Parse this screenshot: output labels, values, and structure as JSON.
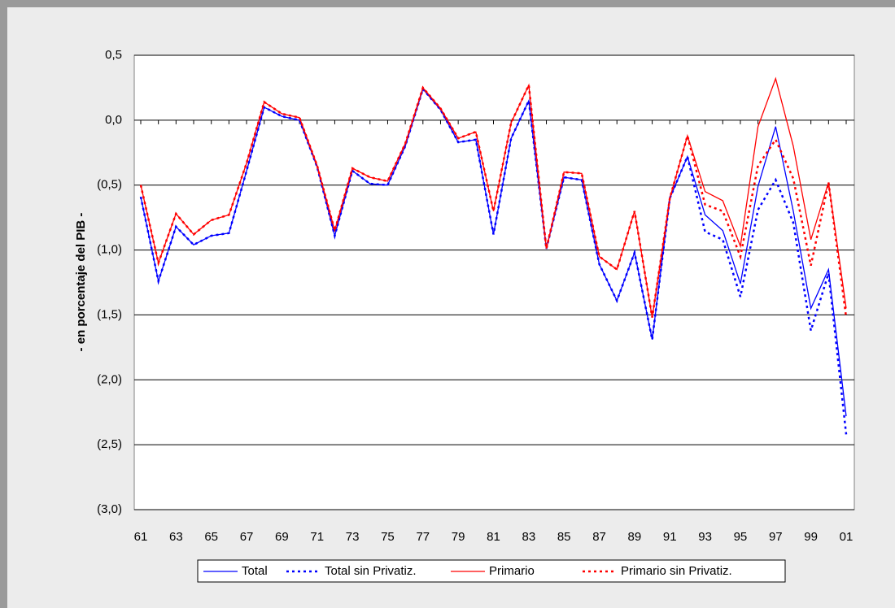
{
  "chart_data": {
    "type": "line",
    "y_label": "- en porcentaje del PIB -",
    "categories": [
      "61",
      null,
      "63",
      null,
      "65",
      null,
      "67",
      null,
      "69",
      null,
      "71",
      null,
      "73",
      null,
      "75",
      null,
      "77",
      null,
      "79",
      null,
      "81",
      null,
      "83",
      null,
      "85",
      null,
      "87",
      null,
      "89",
      null,
      "91",
      null,
      "93",
      null,
      "95",
      null,
      "97",
      null,
      "99",
      null,
      "01"
    ],
    "ylim": [
      -3.0,
      0.5
    ],
    "yticks": [
      {
        "value": -3.0,
        "label": "(3,0)"
      },
      {
        "value": -2.5,
        "label": "(2,5)"
      },
      {
        "value": -2.0,
        "label": "(2,0)"
      },
      {
        "value": -1.5,
        "label": "(1,5)"
      },
      {
        "value": -1.0,
        "label": "(1,0)"
      },
      {
        "value": -0.5,
        "label": "(0,5)"
      },
      {
        "value": 0.0,
        "label": "0,0"
      },
      {
        "value": 0.5,
        "label": "0,5"
      }
    ],
    "grid": true,
    "legend": "bottom",
    "series": [
      {
        "name": "Total",
        "color": "#0000ff",
        "style": "solid",
        "values": [
          -0.59,
          -1.24,
          -0.82,
          -0.96,
          -0.89,
          -0.87,
          -0.39,
          0.1,
          0.03,
          0.0,
          -0.36,
          -0.89,
          -0.39,
          -0.49,
          -0.5,
          -0.2,
          0.24,
          0.08,
          -0.17,
          -0.15,
          -0.88,
          -0.14,
          0.15,
          -0.99,
          -0.44,
          -0.46,
          -1.11,
          -1.39,
          -1.02,
          -1.69,
          -0.6,
          -0.28,
          -0.73,
          -0.85,
          -1.26,
          -0.51,
          -0.05,
          -0.7,
          -1.45,
          -1.15,
          -2.28
        ]
      },
      {
        "name": "Total sin Privatiz.",
        "color": "#0000ff",
        "style": "dotted",
        "values": [
          -0.59,
          -1.24,
          -0.82,
          -0.96,
          -0.89,
          -0.87,
          -0.39,
          0.1,
          0.03,
          0.0,
          -0.36,
          -0.89,
          -0.39,
          -0.49,
          -0.5,
          -0.2,
          0.24,
          0.08,
          -0.17,
          -0.15,
          -0.88,
          -0.14,
          0.15,
          -0.99,
          -0.44,
          -0.46,
          -1.11,
          -1.39,
          -1.02,
          -1.69,
          -0.6,
          -0.28,
          -0.86,
          -0.92,
          -1.36,
          -0.69,
          -0.46,
          -0.79,
          -1.62,
          -1.18,
          -2.42
        ]
      },
      {
        "name": "Primario",
        "color": "#ff0000",
        "style": "solid",
        "values": [
          -0.5,
          -1.1,
          -0.72,
          -0.88,
          -0.77,
          -0.73,
          -0.33,
          0.14,
          0.05,
          0.02,
          -0.35,
          -0.85,
          -0.37,
          -0.44,
          -0.47,
          -0.18,
          0.25,
          0.09,
          -0.14,
          -0.09,
          -0.7,
          -0.02,
          0.27,
          -0.99,
          -0.4,
          -0.41,
          -1.05,
          -1.15,
          -0.7,
          -1.52,
          -0.6,
          -0.12,
          -0.55,
          -0.62,
          -0.97,
          -0.05,
          0.32,
          -0.2,
          -0.92,
          -0.48,
          -1.45
        ]
      },
      {
        "name": "Primario sin Privatiz.",
        "color": "#ff0000",
        "style": "dotted",
        "values": [
          -0.5,
          -1.1,
          -0.72,
          -0.88,
          -0.77,
          -0.73,
          -0.33,
          0.14,
          0.05,
          0.02,
          -0.35,
          -0.85,
          -0.37,
          -0.44,
          -0.47,
          -0.18,
          0.25,
          0.09,
          -0.14,
          -0.09,
          -0.7,
          -0.02,
          0.27,
          -0.99,
          -0.4,
          -0.41,
          -1.05,
          -1.15,
          -0.7,
          -1.52,
          -0.6,
          -0.12,
          -0.65,
          -0.7,
          -1.05,
          -0.35,
          -0.15,
          -0.45,
          -1.12,
          -0.48,
          -1.52
        ]
      }
    ]
  }
}
